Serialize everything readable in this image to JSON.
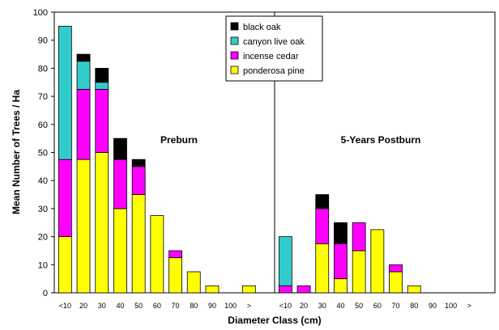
{
  "chart_data": {
    "type": "bar",
    "stacked": true,
    "title": "",
    "xlabel": "Diameter Class (cm)",
    "ylabel": "Mean Number of Trees / Ha",
    "ylim": [
      0,
      100
    ],
    "yticks": [
      0,
      10,
      20,
      30,
      40,
      50,
      60,
      70,
      80,
      90,
      100
    ],
    "grid": false,
    "legend_position": "top-center",
    "colors": {
      "black oak": "#000000",
      "canyon live oak": "#33CCCC",
      "incense cedar": "#FF00FF",
      "ponderosa pine": "#FFFF00"
    },
    "legend": [
      "black oak",
      "canyon live oak",
      "incense cedar",
      "ponderosa pine"
    ],
    "panels": [
      {
        "label": "Preburn",
        "categories": [
          "<10",
          "20",
          "30",
          "40",
          "50",
          "60",
          "70",
          "80",
          "90",
          "100",
          ">"
        ],
        "series": [
          {
            "name": "ponderosa pine",
            "values": [
              20,
              47.5,
              50,
              30,
              35,
              27.5,
              12.5,
              7.5,
              2.5,
              0,
              2.5
            ]
          },
          {
            "name": "incense cedar",
            "values": [
              27.5,
              25,
              22.5,
              17.5,
              10,
              0,
              2.5,
              0,
              0,
              0,
              0
            ]
          },
          {
            "name": "canyon live oak",
            "values": [
              47.5,
              10,
              2.5,
              0,
              0,
              0,
              0,
              0,
              0,
              0,
              0
            ]
          },
          {
            "name": "black oak",
            "values": [
              0,
              2.5,
              5,
              7.5,
              2.5,
              0,
              0,
              0,
              0,
              0,
              0
            ]
          }
        ]
      },
      {
        "label": "5-Years Postburn",
        "categories": [
          "<10",
          "20",
          "30",
          "40",
          "50",
          "60",
          "70",
          "80",
          "90",
          "100",
          ">"
        ],
        "series": [
          {
            "name": "ponderosa pine",
            "values": [
              0,
              0,
              17.5,
              5,
              15,
              22.5,
              7.5,
              2.5,
              0,
              0,
              0
            ]
          },
          {
            "name": "incense cedar",
            "values": [
              2.5,
              2.5,
              12.5,
              12.5,
              10,
              0,
              2.5,
              0,
              0,
              0,
              0
            ]
          },
          {
            "name": "canyon live oak",
            "values": [
              17.5,
              0,
              0,
              0,
              0,
              0,
              0,
              0,
              0,
              0,
              0
            ]
          },
          {
            "name": "black oak",
            "values": [
              0,
              0,
              5,
              7.5,
              0,
              0,
              0,
              0,
              0,
              0,
              0
            ]
          }
        ]
      }
    ]
  }
}
